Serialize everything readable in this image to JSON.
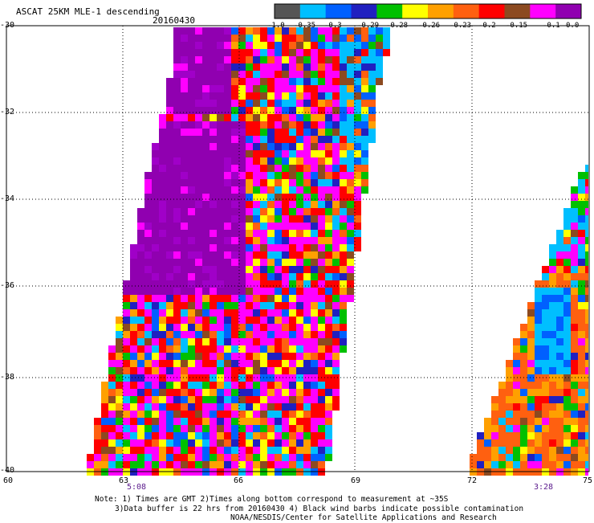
{
  "header": {
    "title": "ASCAT 25KM MLE-1 descending",
    "date": "20160430"
  },
  "colorbar": {
    "colors": [
      "#555555",
      "#00bfff",
      "#0060ff",
      "#2020c0",
      "#00c000",
      "#ffff00",
      "#ffa000",
      "#ff6010",
      "#ff0000",
      "#8c4a20",
      "#ff00ff",
      "#9000b0"
    ],
    "ticks": [
      "-1.0",
      "-0.35",
      "-0.3",
      "-0.29",
      "-0.28",
      "-0.26",
      "-0.23",
      "-0.2",
      "-0.15",
      "-0.1",
      "0.0"
    ]
  },
  "axes": {
    "y_ticks": [
      "-30",
      "-32",
      "-34",
      "-36",
      "-38",
      "-40"
    ],
    "x_ticks": [
      "60",
      "63",
      "66",
      "69",
      "72",
      "75"
    ],
    "time_labels": [
      "5:08",
      "3:28"
    ]
  },
  "footer": {
    "line1": "Note: 1) Times are GMT 2)Times along bottom correspond to measurement at ~35S",
    "line2": "3)Data buffer is 22 hrs from 20160430 4) Black wind barbs indicate possible contamination",
    "line3": "NOAA/NESDIS/Center for Satellite Applications and Research"
  }
}
